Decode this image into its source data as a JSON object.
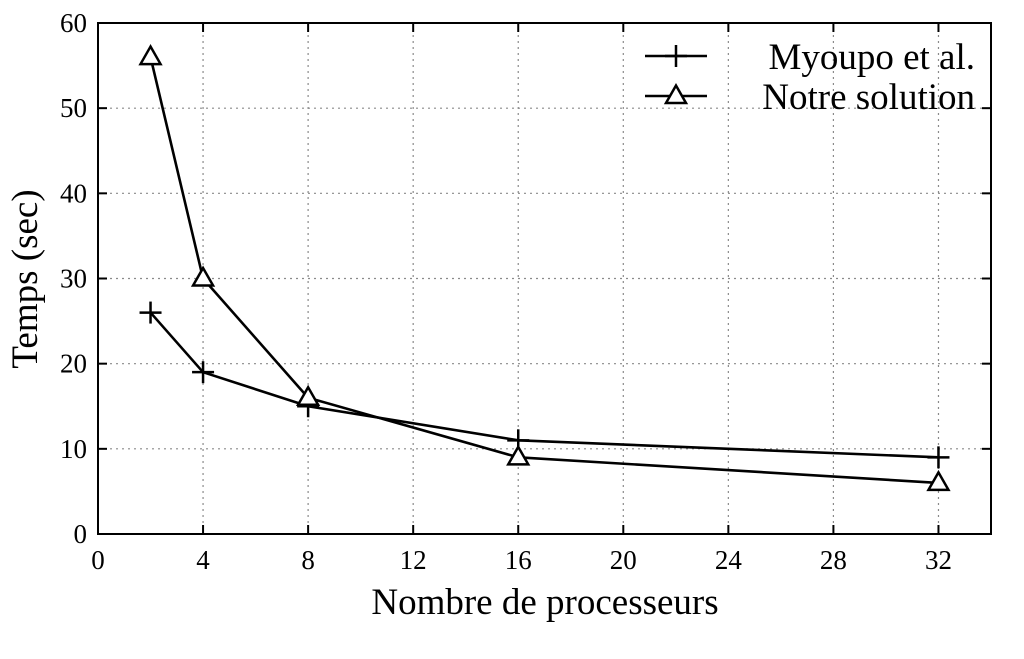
{
  "chart_data": {
    "type": "line",
    "xlabel": "Nombre de processeurs",
    "ylabel": "Temps (sec)",
    "xlim": [
      0,
      34
    ],
    "ylim": [
      0,
      60
    ],
    "xticks": [
      "0",
      "4",
      "8",
      "12",
      "16",
      "20",
      "24",
      "28",
      "32"
    ],
    "yticks": [
      "0",
      "10",
      "20",
      "30",
      "40",
      "50",
      "60"
    ],
    "grid": true,
    "legend_position": "top-right",
    "series": [
      {
        "name": "Myoupo et al.",
        "marker": "plus",
        "color": "#000000",
        "x": [
          2,
          4,
          8,
          16,
          32
        ],
        "y": [
          26,
          19,
          15,
          11,
          9
        ]
      },
      {
        "name": "Notre solution",
        "marker": "triangle",
        "color": "#000000",
        "x": [
          2,
          4,
          8,
          16,
          32
        ],
        "y": [
          56,
          30,
          16,
          9,
          6
        ]
      }
    ]
  }
}
